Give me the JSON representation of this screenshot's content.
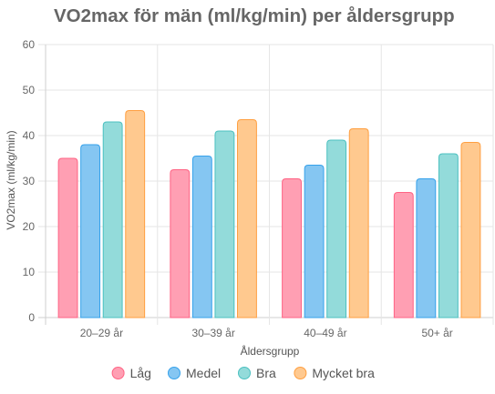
{
  "chart_data": {
    "type": "bar",
    "title": "VO2max för män (ml/kg/min) per åldersgrupp",
    "xlabel": "Åldersgrupp",
    "ylabel": "VO2max (ml/kg/min)",
    "ylim": [
      0,
      60
    ],
    "yticks": [
      "0",
      "10",
      "20",
      "30",
      "40",
      "50",
      "60"
    ],
    "categories": [
      "20–29 år",
      "30–39 år",
      "40–49 år",
      "50+ år"
    ],
    "grid": true,
    "legend_position": "bottom",
    "series": [
      {
        "name": "Låg",
        "values": [
          35,
          32.5,
          30.5,
          27.5
        ],
        "fill": "#ff9fb3",
        "stroke": "#ff6384"
      },
      {
        "name": "Medel",
        "values": [
          38,
          35.5,
          33.5,
          30.5
        ],
        "fill": "#85c6f2",
        "stroke": "#36a2eb"
      },
      {
        "name": "Bra",
        "values": [
          43,
          41,
          39,
          36
        ],
        "fill": "#93dbda",
        "stroke": "#4bc0c0"
      },
      {
        "name": "Mycket bra",
        "values": [
          45.5,
          43.5,
          41.5,
          38.5
        ],
        "fill": "#ffc98f",
        "stroke": "#ff9f40"
      }
    ]
  }
}
